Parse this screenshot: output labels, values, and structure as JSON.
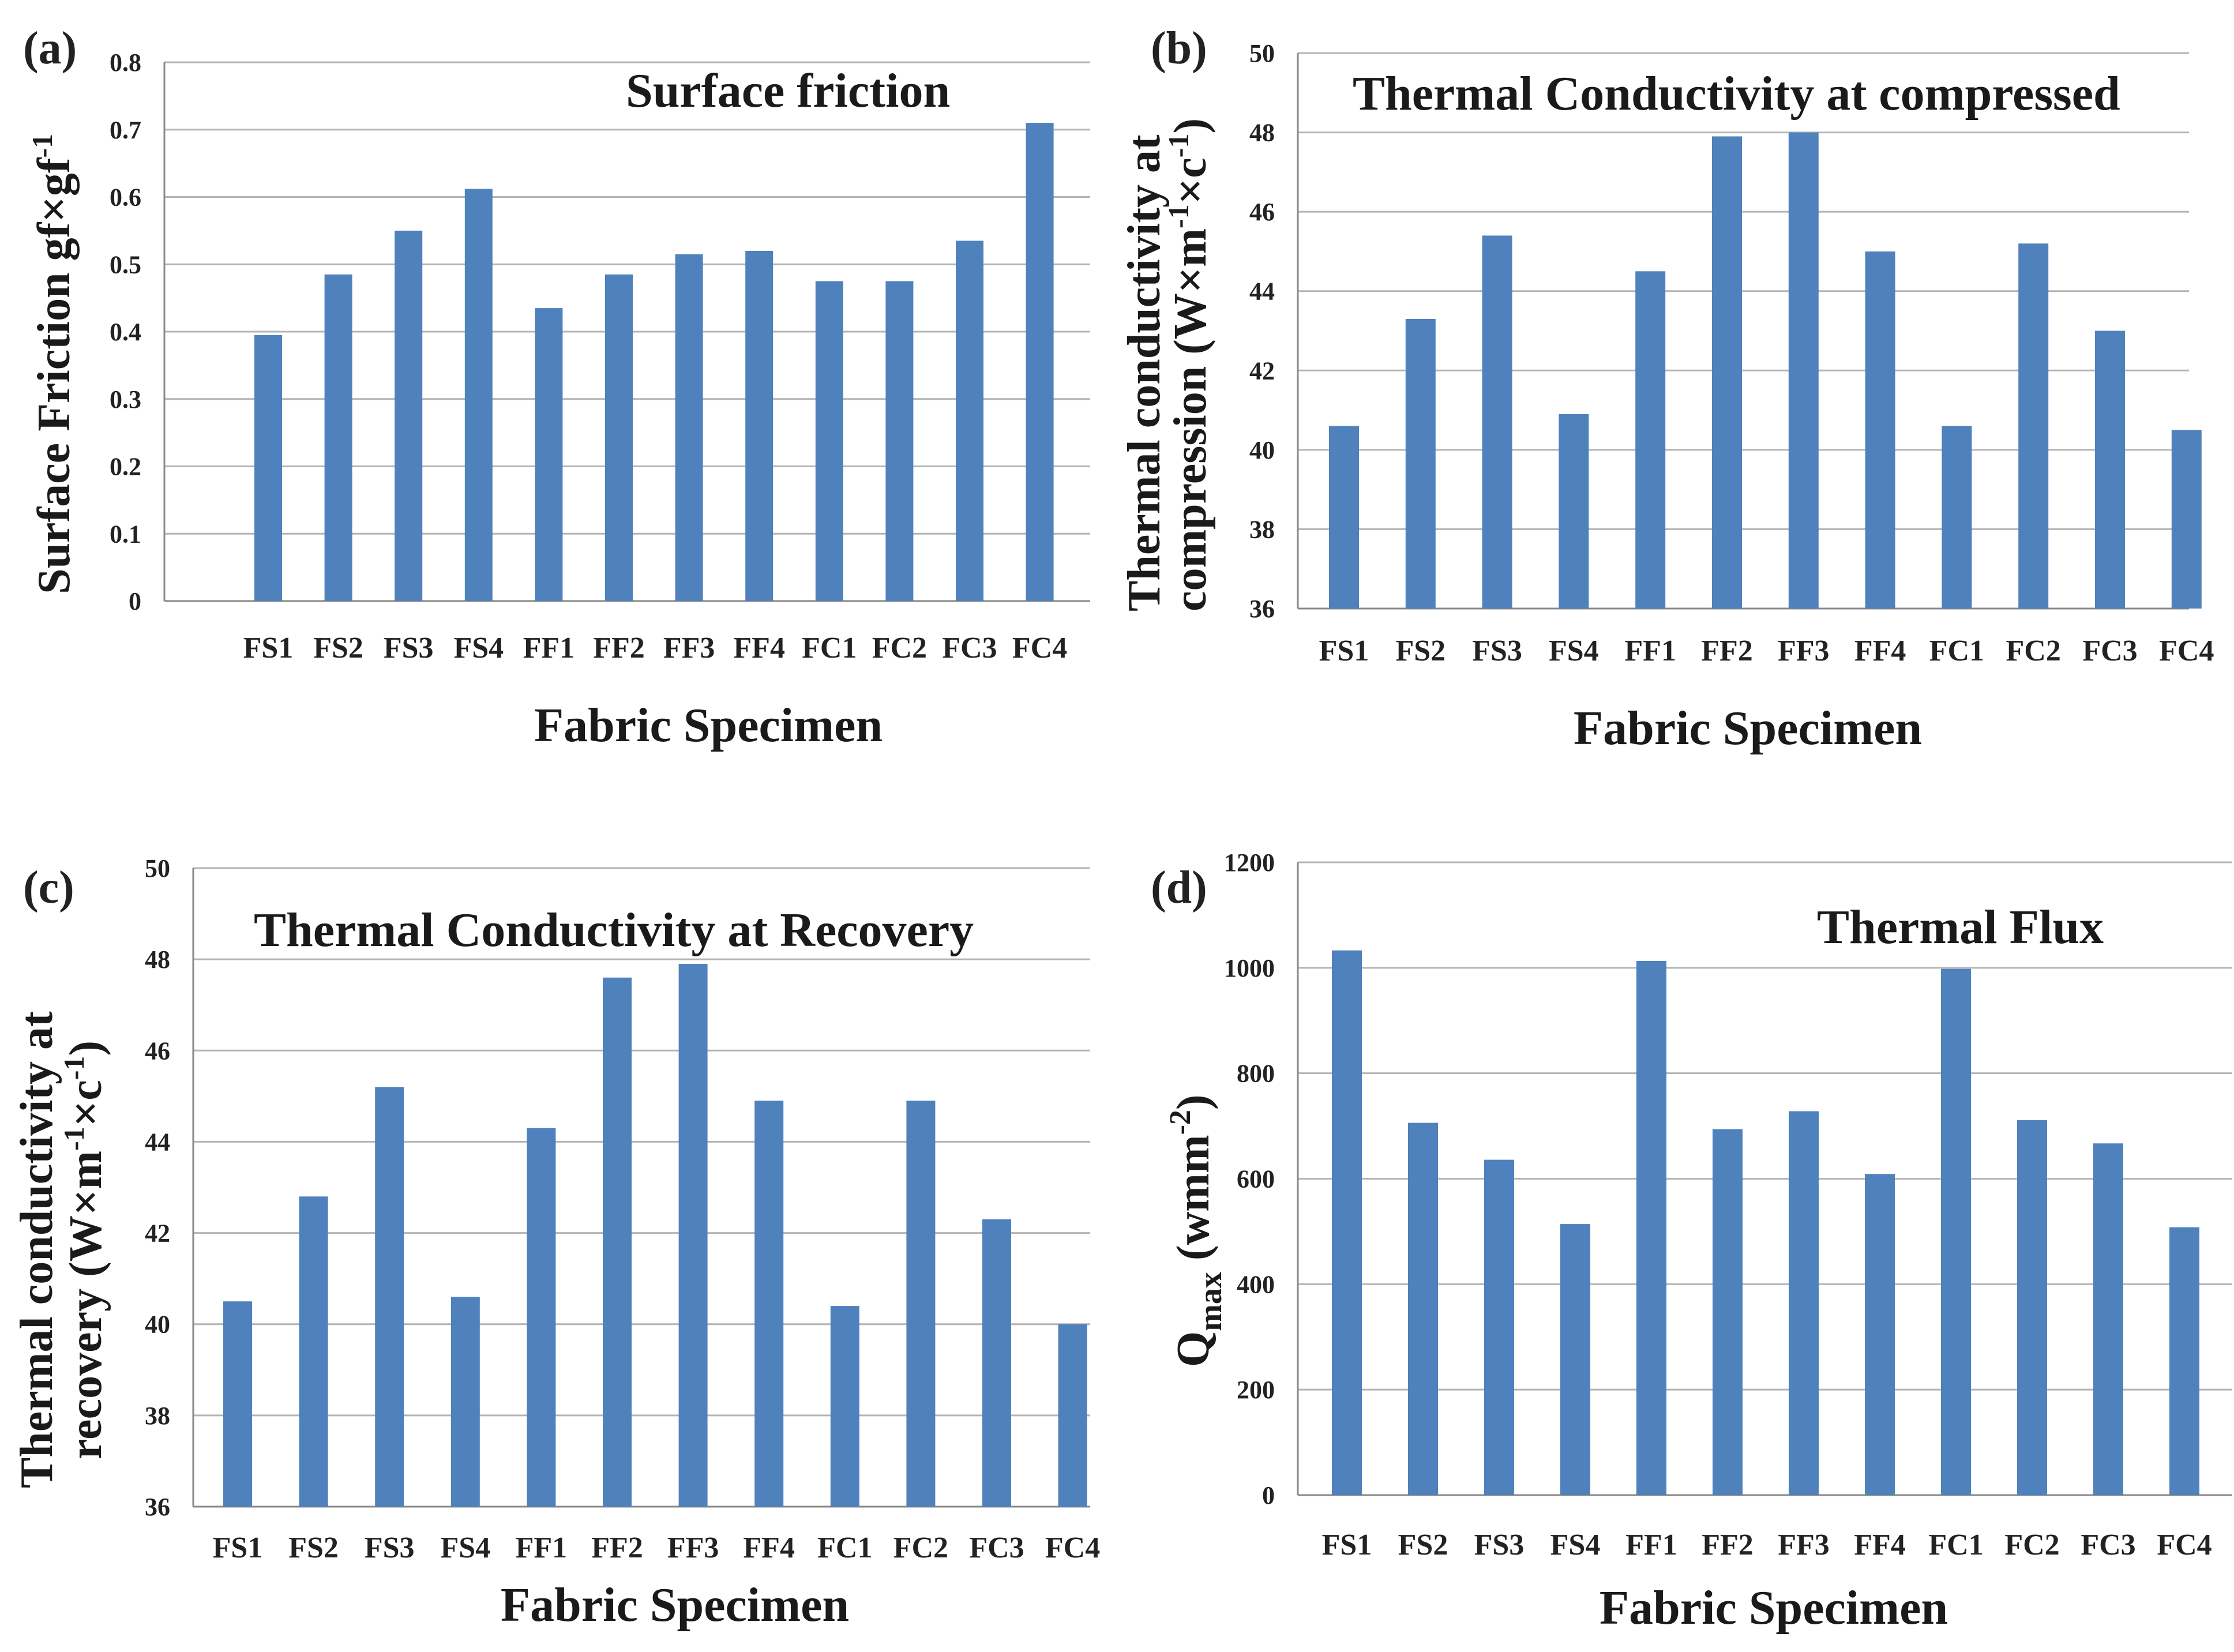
{
  "chart_data": [
    {
      "panel_label": "(a)",
      "type": "bar",
      "title": "Surface friction",
      "ylabel": "Surface  Friction gf×gf",
      "ylabel_sup": "-1",
      "xlabel": "Fabric Specimen",
      "categories": [
        "FS1",
        "FS2",
        "FS3",
        "FS4",
        "FF1",
        "FF2",
        "FF3",
        "FF4",
        "FC1",
        "FC2",
        "FC3",
        "FC4"
      ],
      "values": [
        0.395,
        0.485,
        0.55,
        0.612,
        0.435,
        0.485,
        0.515,
        0.52,
        0.475,
        0.475,
        0.535,
        0.71
      ],
      "ylim": [
        0,
        0.8
      ],
      "yticks": [
        "0",
        "0.1",
        "0.2",
        "0.3",
        "0.4",
        "0.5",
        "0.6",
        "0.7",
        "0.8"
      ],
      "grid": true,
      "legend": false,
      "color": "#4f81bd"
    },
    {
      "panel_label": "(b)",
      "type": "bar",
      "title": "Thermal Conductivity at compressed",
      "ylabel_line1": "Thermal  conductivity at",
      "ylabel_line2": "compression  (W×m",
      "ylabel_sup1": "-1",
      "ylabel_mid": "×c",
      "ylabel_sup2": "-1",
      "ylabel_end": ")",
      "xlabel": "Fabric Specimen",
      "categories": [
        "FS1",
        "FS2",
        "FS3",
        "FS4",
        "FF1",
        "FF2",
        "FF3",
        "FF4",
        "FC1",
        "FC2",
        "FC3",
        "FC4"
      ],
      "values": [
        40.6,
        43.3,
        45.4,
        40.9,
        44.5,
        47.9,
        48.0,
        45.0,
        40.6,
        45.2,
        43.0,
        40.5
      ],
      "ylim": [
        36,
        50
      ],
      "yticks": [
        "36",
        "38",
        "40",
        "42",
        "44",
        "46",
        "48",
        "50"
      ],
      "grid": true,
      "legend": false,
      "color": "#4f81bd"
    },
    {
      "panel_label": "(c)",
      "type": "bar",
      "title": "Thermal Conductivity at Recovery",
      "ylabel_line1": "Thermal conductivity at",
      "ylabel_line2": "recovery  (W×m",
      "ylabel_sup1": "-1",
      "ylabel_mid": "×c",
      "ylabel_sup2": "-1",
      "ylabel_end": ")",
      "xlabel": "Fabric Specimen",
      "categories": [
        "FS1",
        "FS2",
        "FS3",
        "FS4",
        "FF1",
        "FF2",
        "FF3",
        "FF4",
        "FC1",
        "FC2",
        "FC3",
        "FC4"
      ],
      "values": [
        40.5,
        42.8,
        45.2,
        40.6,
        44.3,
        47.6,
        47.9,
        44.9,
        40.4,
        44.9,
        42.3,
        40.0
      ],
      "ylim": [
        36,
        50
      ],
      "yticks": [
        "36",
        "38",
        "40",
        "42",
        "44",
        "46",
        "48",
        "50"
      ],
      "grid": true,
      "legend": false,
      "color": "#4f81bd"
    },
    {
      "panel_label": "(d)",
      "type": "bar",
      "title": "Thermal Flux",
      "ylabel": "Q",
      "ylabel_sub": "max",
      "ylabel_rest": " (wmm",
      "ylabel_sup": "-2",
      "ylabel_end": ")",
      "xlabel": "Fabric Specimen",
      "categories": [
        "FS1",
        "FS2",
        "FS3",
        "FS4",
        "FF1",
        "FF2",
        "FF3",
        "FF4",
        "FC1",
        "FC2",
        "FC3",
        "FC4"
      ],
      "values": [
        1033,
        706,
        636,
        514,
        1013,
        694,
        728,
        609,
        998,
        711,
        667,
        508
      ],
      "ylim": [
        0,
        1200
      ],
      "yticks": [
        "0",
        "200",
        "400",
        "600",
        "800",
        "1000",
        "1200"
      ],
      "grid": true,
      "legend": false,
      "color": "#4f81bd"
    }
  ]
}
